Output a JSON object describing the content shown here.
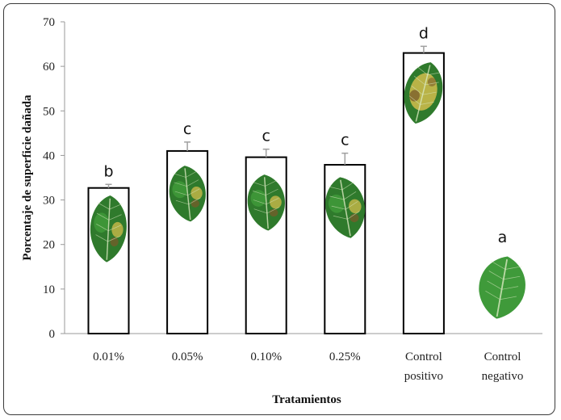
{
  "chart_data": {
    "type": "bar",
    "title": "",
    "xlabel": "Tratamientos",
    "ylabel": "Porcentaje de superficie dañada",
    "ylim": [
      0,
      70
    ],
    "yticks": [
      0,
      10,
      20,
      30,
      40,
      50,
      60,
      70
    ],
    "grid": false,
    "categories": [
      {
        "line1": "0.01%",
        "line2": ""
      },
      {
        "line1": "0.05%",
        "line2": ""
      },
      {
        "line1": "0.10%",
        "line2": ""
      },
      {
        "line1": "0.25%",
        "line2": ""
      },
      {
        "line1": "Control",
        "line2": "positivo"
      },
      {
        "line1": "Control",
        "line2": "negativo"
      }
    ],
    "values": [
      32.7,
      41.0,
      39.6,
      37.9,
      63.0,
      0
    ],
    "errors": [
      0.8,
      2.0,
      1.8,
      2.6,
      1.5,
      0
    ],
    "significance": [
      "b",
      "c",
      "c",
      "c",
      "d",
      "a"
    ],
    "leaf_images": [
      "diseased",
      "diseased",
      "diseased",
      "diseased",
      "severely-diseased",
      "healthy"
    ]
  },
  "colors": {
    "bar_fill": "#ffffff",
    "bar_stroke": "#000000",
    "axis": "#999999",
    "leaf_healthy": "#3f9a3a",
    "leaf_dark": "#2f7a2c",
    "leaf_yellow": "#c9b94a",
    "leaf_brown": "#7a5a2a",
    "error_bar": "#a0a0a0"
  }
}
